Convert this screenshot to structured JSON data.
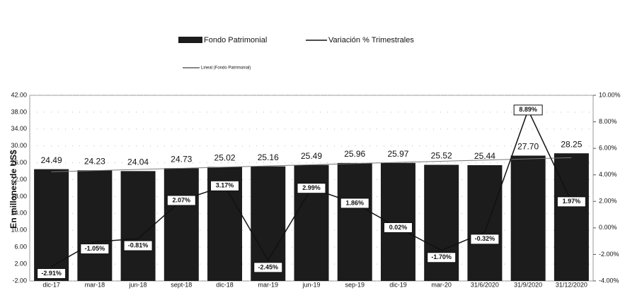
{
  "chart_data": {
    "type": "bar_line",
    "y_axis_label": "En millones de US$",
    "categories": [
      "dic-17",
      "mar-18",
      "jun-18",
      "sept-18",
      "dic-18",
      "mar-19",
      "jun-19",
      "sep-19",
      "dic-19",
      "mar-20",
      "31/6/2020",
      "31/9/2020",
      "31/12/2020"
    ],
    "series": [
      {
        "name": "Fondo Patrimonial",
        "color": "#1c1c1c",
        "type": "bar",
        "values": [
          24.49,
          24.23,
          24.04,
          24.73,
          25.02,
          25.16,
          25.49,
          25.96,
          25.97,
          25.52,
          25.44,
          27.7,
          28.25
        ],
        "value_labels": [
          "24.49",
          "24.23",
          "24.04",
          "24.73",
          "25.02",
          "25.16",
          "25.49",
          "25.96",
          "25.97",
          "25.52",
          "25.44",
          "27.70",
          "28.25"
        ]
      },
      {
        "name": "Variación % Trimestrales",
        "color": "#111111",
        "type": "line",
        "axis": "y2",
        "values": [
          -2.91,
          -1.05,
          -0.81,
          2.07,
          3.17,
          -2.45,
          2.99,
          1.86,
          0.02,
          -1.7,
          -0.32,
          8.89,
          1.97
        ],
        "value_labels": [
          "-2.91%",
          "-1.05%",
          "-0.81%",
          "2.07%",
          "3.17%",
          "-2.45%",
          "2.99%",
          "1.86%",
          "0.02%",
          "-1.70%",
          "-0.32%",
          "8.89%",
          "1.97%"
        ]
      }
    ],
    "trendline_name": "Lineal (Fondo Patrimonial)",
    "ylim": [
      -2,
      42
    ],
    "yticks": [
      {
        "value": -2,
        "label": "-2.00"
      },
      {
        "value": 2,
        "label": "2.00"
      },
      {
        "value": 6,
        "label": "6.00"
      },
      {
        "value": 10,
        "label": "10.00"
      },
      {
        "value": 14,
        "label": "14.00"
      },
      {
        "value": 18,
        "label": "18.00"
      },
      {
        "value": 22,
        "label": "22.00"
      },
      {
        "value": 26,
        "label": "26.00"
      },
      {
        "value": 30,
        "label": "30.00"
      },
      {
        "value": 34,
        "label": "34.00"
      },
      {
        "value": 38,
        "label": "38.00"
      },
      {
        "value": 42,
        "label": "42.00"
      }
    ],
    "y2lim": [
      -4,
      10
    ],
    "y2ticks": [
      {
        "value": -4,
        "label": "-4.00%"
      },
      {
        "value": -2,
        "label": "-2.00%"
      },
      {
        "value": 0,
        "label": "0.00%"
      },
      {
        "value": 2,
        "label": "2.00%"
      },
      {
        "value": 4,
        "label": "4.00%"
      },
      {
        "value": 6,
        "label": "6.00%"
      },
      {
        "value": 8,
        "label": "8.00%"
      },
      {
        "value": 10,
        "label": "10.00%"
      }
    ],
    "grid": true
  }
}
